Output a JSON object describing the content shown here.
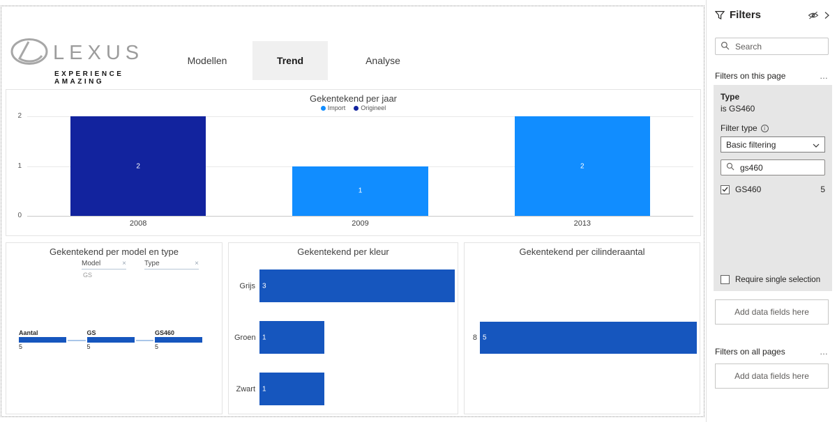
{
  "report": {
    "logo": {
      "brand": "LEXUS",
      "tagline": "EXPERIENCE AMAZING"
    },
    "tabs": [
      {
        "label": "Modellen",
        "active": false
      },
      {
        "label": "Trend",
        "active": true
      },
      {
        "label": "Analyse",
        "active": false
      }
    ]
  },
  "colors": {
    "import": "#118DFF",
    "origineel": "#12239E",
    "bar": "#1656BE",
    "connector": "#A9C6E8"
  },
  "chart_data": [
    {
      "id": "per_jaar",
      "type": "bar",
      "title": "Gekentekend per jaar",
      "legend": [
        {
          "name": "Import",
          "color": "#118DFF"
        },
        {
          "name": "Origineel",
          "color": "#12239E"
        }
      ],
      "categories": [
        "2008",
        "2009",
        "2013"
      ],
      "values": [
        2,
        1,
        2
      ],
      "series_assignment": [
        "Origineel",
        "Import",
        "Import"
      ],
      "yticks": [
        0,
        1,
        2
      ],
      "ylim": [
        0,
        2
      ]
    },
    {
      "id": "per_model_en_type",
      "type": "decomposition-tree",
      "title": "Gekentekend per model en type",
      "fields": [
        {
          "name": "Model",
          "remove": "×"
        },
        {
          "name": "Type",
          "remove": "×"
        }
      ],
      "field_values": [
        "GS"
      ],
      "nodes": [
        {
          "label": "Aantal",
          "value": 5
        },
        {
          "label": "GS",
          "value": 5
        },
        {
          "label": "GS460",
          "value": 5
        }
      ]
    },
    {
      "id": "per_kleur",
      "type": "bar-horizontal",
      "title": "Gekentekend per kleur",
      "categories": [
        "Grijs",
        "Groen",
        "Zwart"
      ],
      "values": [
        3,
        1,
        1
      ],
      "xmax": 3
    },
    {
      "id": "per_cilinderaantal",
      "type": "bar-horizontal",
      "title": "Gekentekend per cilinderaantal",
      "categories": [
        "8"
      ],
      "values": [
        5
      ],
      "xmax": 5
    }
  ],
  "filters": {
    "title": "Filters",
    "search_placeholder": "Search",
    "section_page": "Filters on this page",
    "section_all": "Filters on all pages",
    "more": "…",
    "card": {
      "field": "Type",
      "condition": "is GS460",
      "filter_type_label": "Filter type",
      "info_glyph": "i",
      "filter_type_value": "Basic filtering",
      "search_value": "gs460",
      "options": [
        {
          "label": "GS460",
          "count": "5",
          "checked": true
        }
      ],
      "require_single": "Require single selection"
    },
    "add_fields": "Add data fields here"
  }
}
